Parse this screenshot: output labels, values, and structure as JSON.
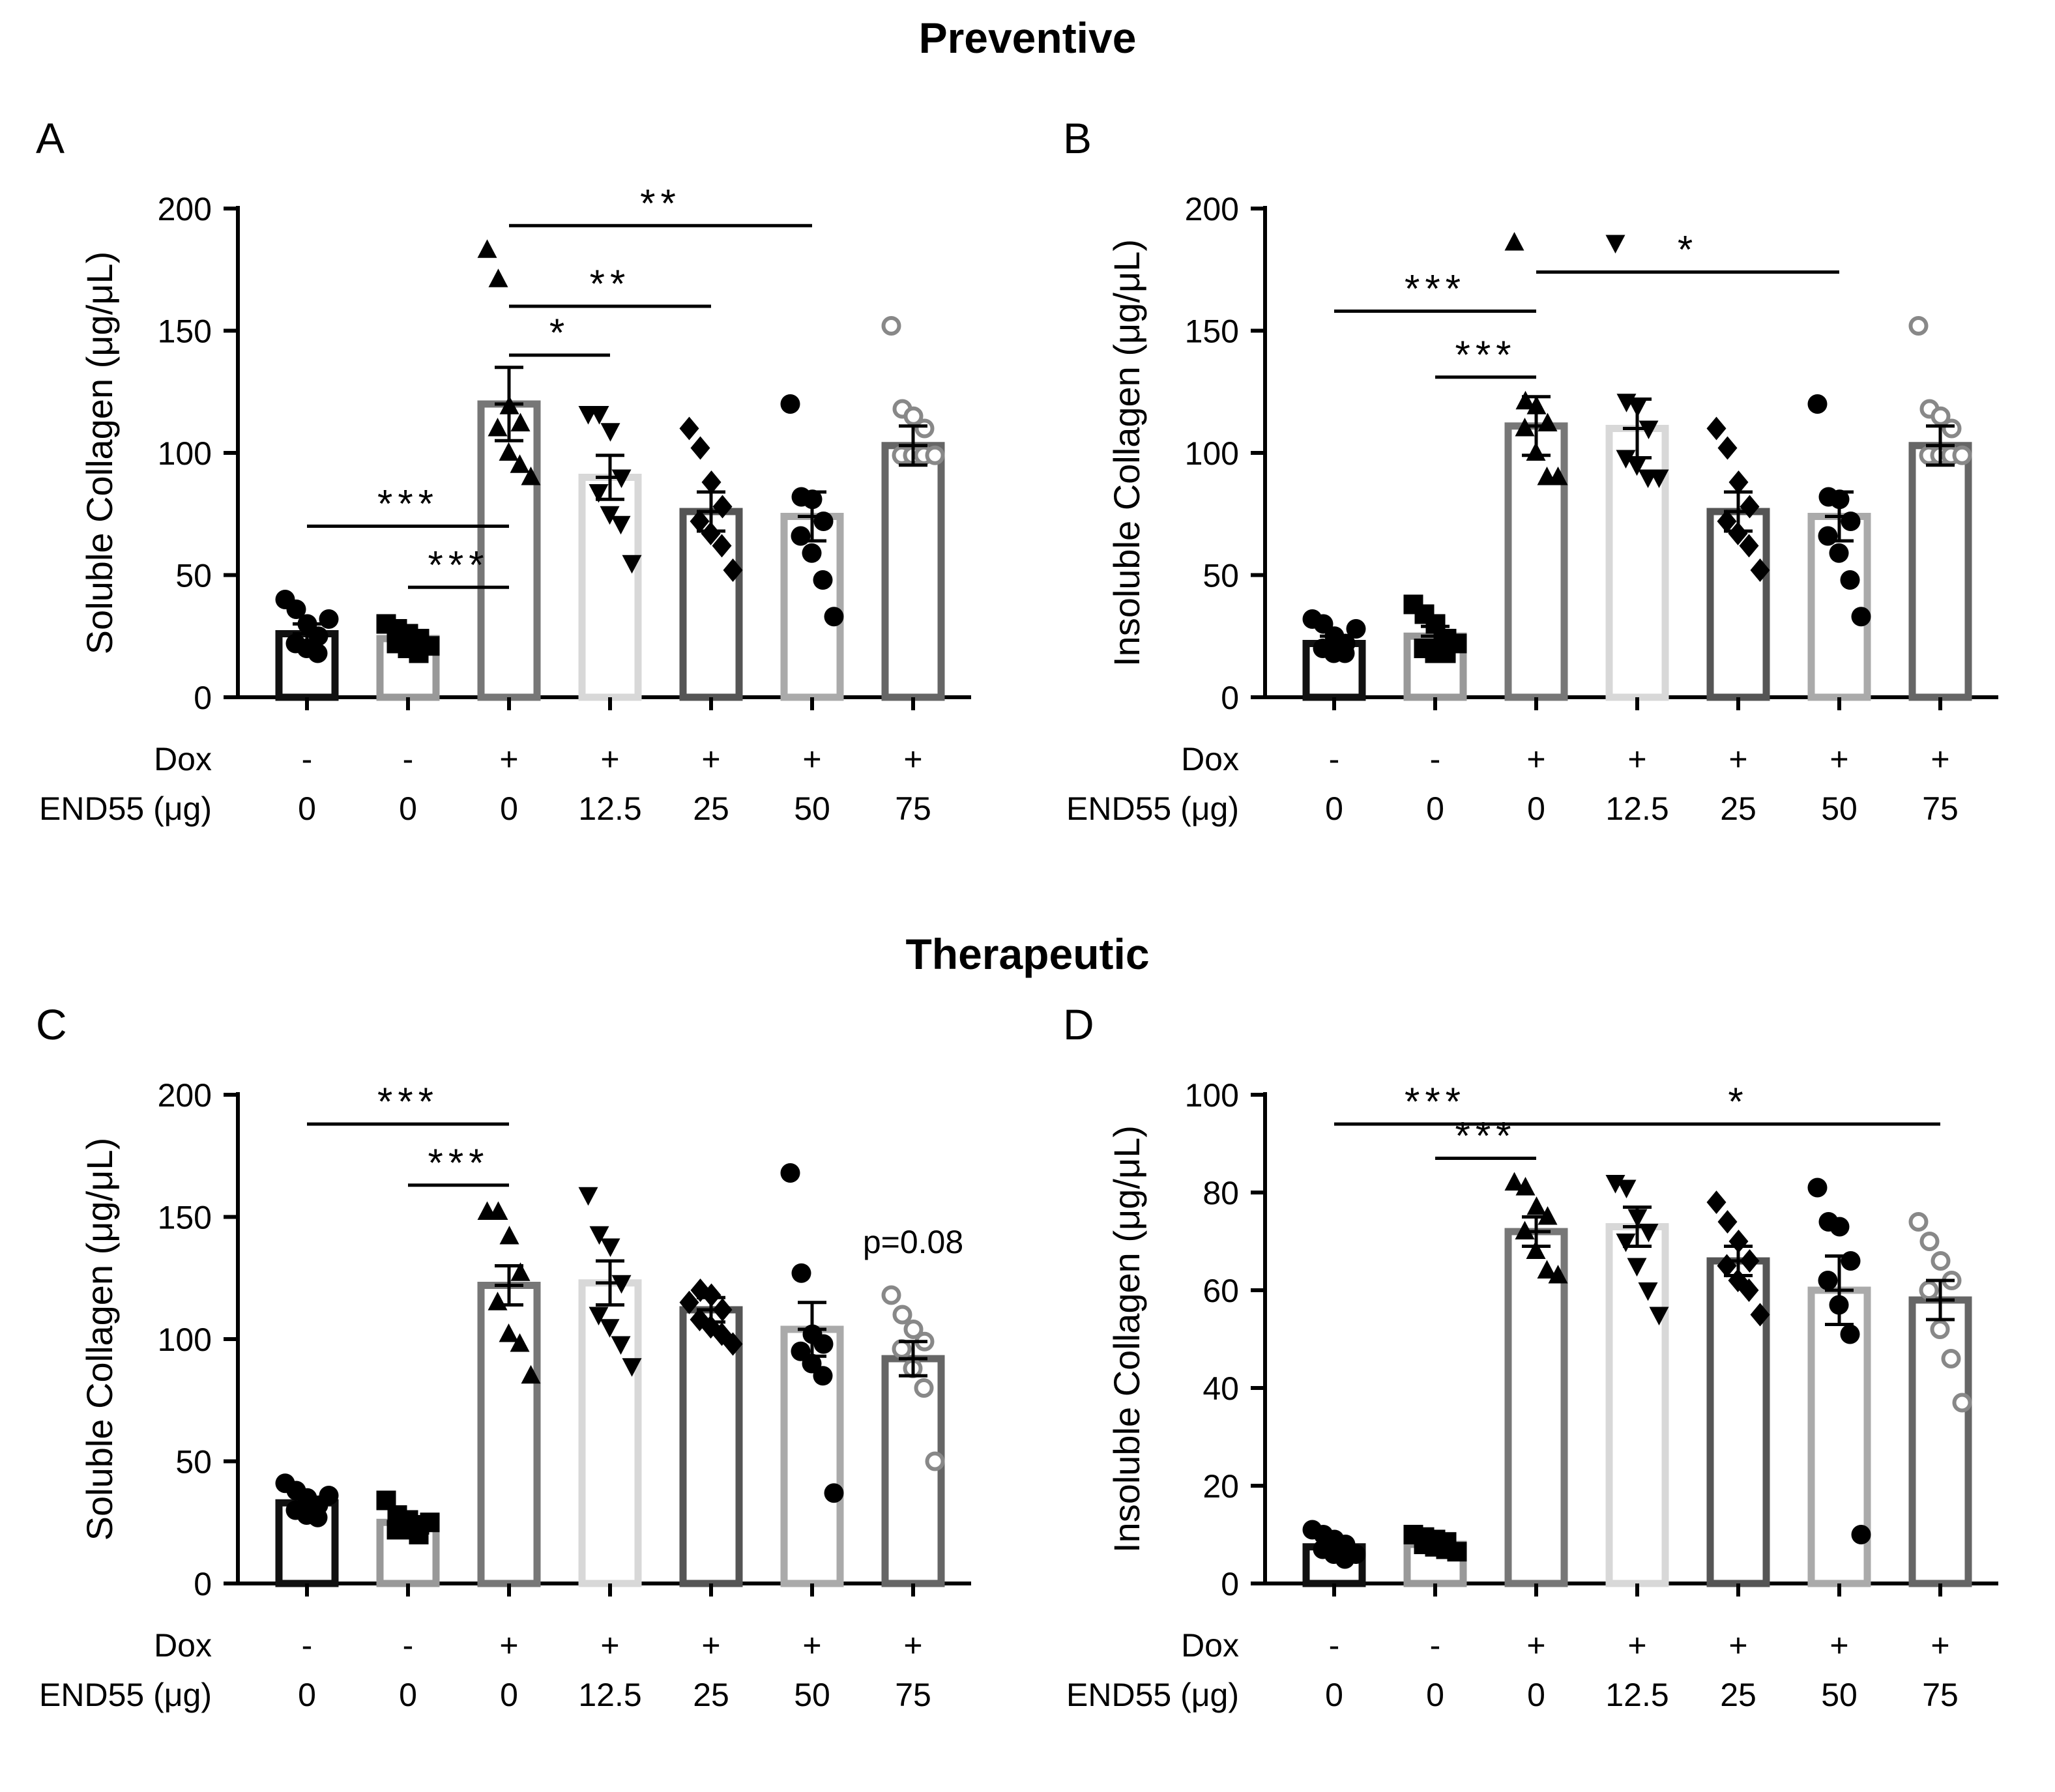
{
  "titles": {
    "preventive": "Preventive",
    "therapeutic": "Therapeutic"
  },
  "row_labels": {
    "dox": "Dox",
    "end55": "END55 (μg)"
  },
  "chart_data": [
    {
      "id": "A",
      "type": "bar",
      "panel_label": "A",
      "section": "Preventive",
      "ylabel": "Soluble Collagen (μg/μL)",
      "ylim": [
        0,
        200
      ],
      "yticks": [
        0,
        50,
        100,
        150,
        200
      ],
      "dox": [
        "-",
        "-",
        "+",
        "+",
        "+",
        "+",
        "+"
      ],
      "categories": [
        "0",
        "0",
        "0",
        "12.5",
        "25",
        "50",
        "75"
      ],
      "means": [
        26,
        24,
        120,
        90,
        76,
        74,
        103
      ],
      "sem": [
        4,
        3,
        15,
        9,
        8,
        10,
        8
      ],
      "points": [
        [
          40,
          36,
          30,
          25,
          22,
          20,
          18,
          32
        ],
        [
          30,
          28,
          26,
          24,
          22,
          20,
          18,
          21
        ],
        [
          183,
          171,
          119,
          112,
          110,
          100,
          95,
          90
        ],
        [
          116,
          116,
          109,
          90,
          84,
          75,
          71,
          55
        ],
        [
          110,
          102,
          88,
          78,
          72,
          67,
          62,
          52
        ],
        [
          120,
          82,
          81,
          72,
          66,
          59,
          48,
          33
        ],
        [
          152,
          118,
          115,
          110,
          99,
          99,
          99,
          99
        ]
      ],
      "markers": [
        "circle",
        "square",
        "triangle-up",
        "triangle-down",
        "diamond",
        "circle",
        "open-circle"
      ],
      "bar_colors": [
        "#111111",
        "#999999",
        "#777777",
        "#d8d8d8",
        "#555555",
        "#aaaaaa",
        "#666666"
      ],
      "annotations": [
        {
          "from": 0,
          "to": 2,
          "y": 70,
          "label": "***"
        },
        {
          "from": 1,
          "to": 2,
          "y": 45,
          "label": "***"
        },
        {
          "from": 2,
          "to": 3,
          "y": 140,
          "label": "*"
        },
        {
          "from": 2,
          "to": 4,
          "y": 160,
          "label": "**"
        },
        {
          "from": 2,
          "to": 5,
          "y": 193,
          "label": "**"
        }
      ]
    },
    {
      "id": "B",
      "type": "bar",
      "panel_label": "B",
      "section": "Preventive",
      "ylabel": "Insoluble Collagen (μg/μL)",
      "ylim": [
        0,
        200
      ],
      "yticks": [
        0,
        50,
        100,
        150,
        200
      ],
      "dox": [
        "-",
        "-",
        "+",
        "+",
        "+",
        "+",
        "+"
      ],
      "categories": [
        "0",
        "0",
        "0",
        "12.5",
        "25",
        "50",
        "75"
      ],
      "means": [
        22,
        25,
        111,
        110,
        76,
        74,
        103
      ],
      "sem": [
        3,
        4,
        12,
        12,
        8,
        10,
        8
      ],
      "points": [
        [
          32,
          30,
          25,
          22,
          20,
          18,
          18,
          28
        ],
        [
          38,
          34,
          30,
          24,
          20,
          18,
          18,
          22
        ],
        [
          186,
          121,
          119,
          112,
          110,
          100,
          90,
          90
        ],
        [
          186,
          121,
          119,
          110,
          98,
          95,
          90,
          90
        ],
        [
          110,
          102,
          88,
          78,
          72,
          67,
          62,
          52
        ],
        [
          120,
          82,
          81,
          72,
          66,
          59,
          48,
          33
        ],
        [
          152,
          118,
          115,
          110,
          99,
          99,
          99,
          99
        ]
      ],
      "markers": [
        "circle",
        "square",
        "triangle-up",
        "triangle-down",
        "diamond",
        "circle",
        "open-circle"
      ],
      "bar_colors": [
        "#111111",
        "#999999",
        "#777777",
        "#d8d8d8",
        "#555555",
        "#aaaaaa",
        "#666666"
      ],
      "annotations": [
        {
          "from": 0,
          "to": 2,
          "y": 158,
          "label": "***"
        },
        {
          "from": 1,
          "to": 2,
          "y": 131,
          "label": "***"
        },
        {
          "from": 2,
          "to": 5,
          "y": 174,
          "label": "*"
        }
      ]
    },
    {
      "id": "C",
      "type": "bar",
      "panel_label": "C",
      "section": "Therapeutic",
      "ylabel": "Soluble Collagen (μg/μL)",
      "ylim": [
        0,
        200
      ],
      "yticks": [
        0,
        50,
        100,
        150,
        200
      ],
      "dox": [
        "-",
        "-",
        "+",
        "+",
        "+",
        "+",
        "+"
      ],
      "categories": [
        "0",
        "0",
        "0",
        "12.5",
        "25",
        "50",
        "75"
      ],
      "means": [
        33,
        25,
        122,
        123,
        112,
        104,
        92
      ],
      "sem": [
        2,
        2,
        8,
        9,
        5,
        11,
        7
      ],
      "points": [
        [
          41,
          38,
          35,
          32,
          30,
          28,
          27,
          36
        ],
        [
          34,
          28,
          26,
          24,
          22,
          22,
          20,
          25
        ],
        [
          152,
          152,
          142,
          127,
          115,
          102,
          98,
          85
        ],
        [
          159,
          143,
          138,
          123,
          110,
          105,
          98,
          89
        ],
        [
          115,
          120,
          118,
          112,
          108,
          105,
          102,
          98
        ],
        [
          168,
          127,
          102,
          98,
          95,
          90,
          85,
          37
        ],
        [
          118,
          110,
          104,
          99,
          96,
          88,
          80,
          50
        ]
      ],
      "markers": [
        "circle",
        "square",
        "triangle-up",
        "triangle-down",
        "diamond",
        "circle",
        "open-circle"
      ],
      "bar_colors": [
        "#111111",
        "#999999",
        "#777777",
        "#d8d8d8",
        "#555555",
        "#aaaaaa",
        "#666666"
      ],
      "annotations": [
        {
          "from": 0,
          "to": 2,
          "y": 188,
          "label": "***"
        },
        {
          "from": 1,
          "to": 2,
          "y": 163,
          "label": "***"
        }
      ],
      "notes": [
        {
          "bar": 6,
          "y": 140,
          "label": "p=0.08"
        }
      ]
    },
    {
      "id": "D",
      "type": "bar",
      "panel_label": "D",
      "section": "Therapeutic",
      "ylabel": "Insoluble Collagen (μg/μL)",
      "ylim": [
        0,
        100
      ],
      "yticks": [
        0,
        20,
        40,
        60,
        80,
        100
      ],
      "dox": [
        "-",
        "-",
        "+",
        "+",
        "+",
        "+",
        "+"
      ],
      "categories": [
        "0",
        "0",
        "0",
        "12.5",
        "25",
        "50",
        "75"
      ],
      "means": [
        7.5,
        8,
        72,
        73,
        66,
        60,
        58
      ],
      "sem": [
        1,
        0.5,
        3,
        4,
        3,
        7,
        4
      ],
      "points": [
        [
          11,
          10,
          9,
          8,
          7,
          6,
          5,
          6
        ],
        [
          10,
          9.5,
          9,
          8.5,
          8,
          7.5,
          7,
          6.5
        ],
        [
          82,
          81,
          77,
          75,
          72,
          68,
          64,
          63
        ],
        [
          82,
          81,
          75,
          72,
          70,
          65,
          60,
          55
        ],
        [
          78,
          74,
          70,
          66,
          65,
          62,
          60,
          55
        ],
        [
          81,
          74,
          73,
          66,
          62,
          57,
          51,
          10
        ],
        [
          74,
          70,
          66,
          62,
          60,
          52,
          46,
          37
        ]
      ],
      "markers": [
        "circle",
        "square",
        "triangle-up",
        "triangle-down",
        "diamond",
        "circle",
        "open-circle"
      ],
      "bar_colors": [
        "#111111",
        "#999999",
        "#777777",
        "#d8d8d8",
        "#555555",
        "#aaaaaa",
        "#666666"
      ],
      "annotations": [
        {
          "from": 0,
          "to": 2,
          "y": 94,
          "label": "***"
        },
        {
          "from": 1,
          "to": 2,
          "y": 87,
          "label": "***"
        },
        {
          "from": 2,
          "to": 6,
          "y": 94,
          "label": "*"
        }
      ]
    }
  ]
}
